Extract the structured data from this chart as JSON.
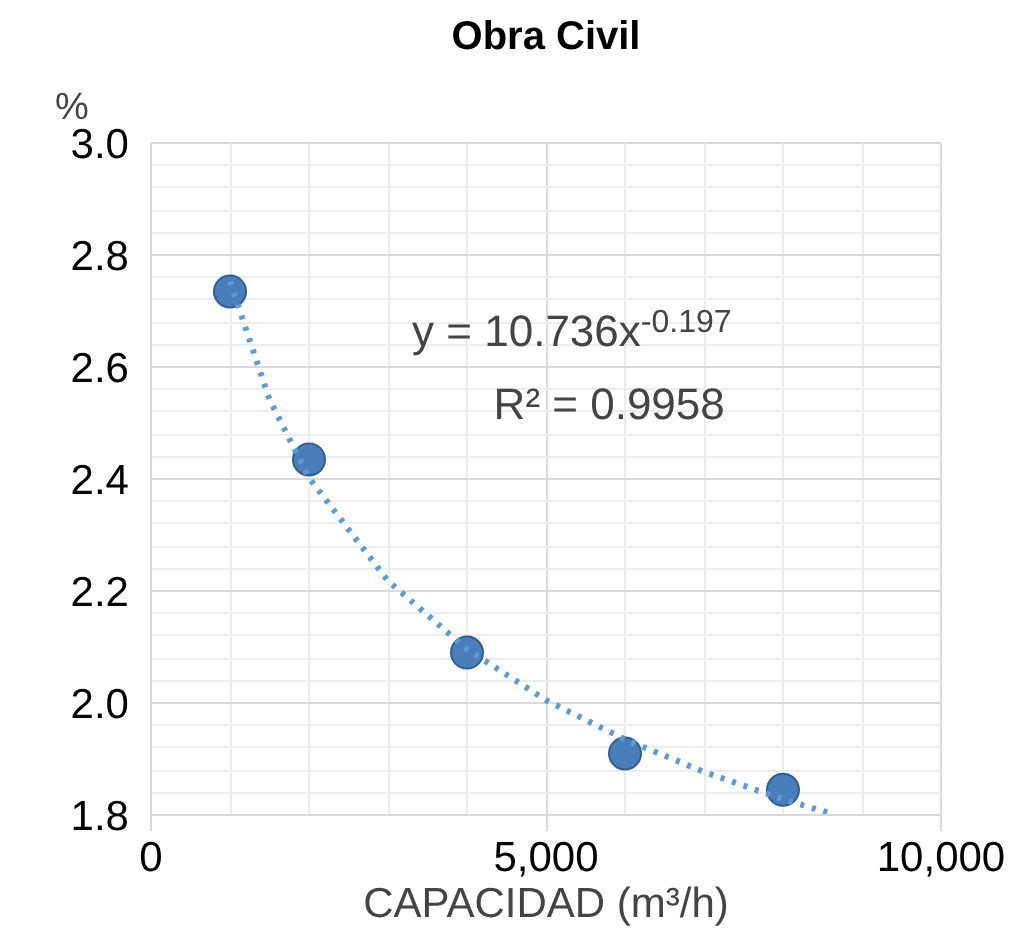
{
  "chart_data": {
    "type": "scatter",
    "title": "Obra Civil",
    "xlabel": "CAPACIDAD (m³/h)",
    "ylabel": "%",
    "series": [
      {
        "color": "#4a7ebb",
        "x": [
          1000,
          2000,
          4000,
          6000,
          8000
        ],
        "values": [
          2.735,
          2.435,
          2.09,
          1.91,
          1.845
        ],
        "marker": "circle"
      },
      {
        "type": "line",
        "color": "#5b9bd5",
        "line_style": "dotted",
        "x": [
          1000,
          1500,
          2000,
          3000,
          4000,
          5000,
          6000,
          7000,
          8000,
          8600
        ],
        "values": [
          2.753,
          2.542,
          2.402,
          2.218,
          2.096,
          2.005,
          1.935,
          1.877,
          1.828,
          1.803
        ]
      }
    ],
    "xlim": [
      0,
      10000
    ],
    "ylim": [
      1.8,
      3.0
    ],
    "xticks": [
      0,
      {
        "value": 5000,
        "label": "5,000"
      },
      {
        "value": 10000,
        "label": "10,000"
      }
    ],
    "yticks": [
      {
        "value": 1.8,
        "label": "1.8"
      },
      {
        "value": 2.0,
        "label": "2.0"
      },
      {
        "value": 2.2,
        "label": "2.2"
      },
      {
        "value": 2.4,
        "label": "2.4"
      },
      {
        "value": 2.6,
        "label": "2.6"
      },
      {
        "value": 2.8,
        "label": "2.8"
      },
      {
        "value": 3.0,
        "label": "3.0"
      }
    ],
    "grid": true,
    "annotations": [
      "y = 10.736x$^{-0.197}$",
      "R² = 0.9958"
    ]
  }
}
